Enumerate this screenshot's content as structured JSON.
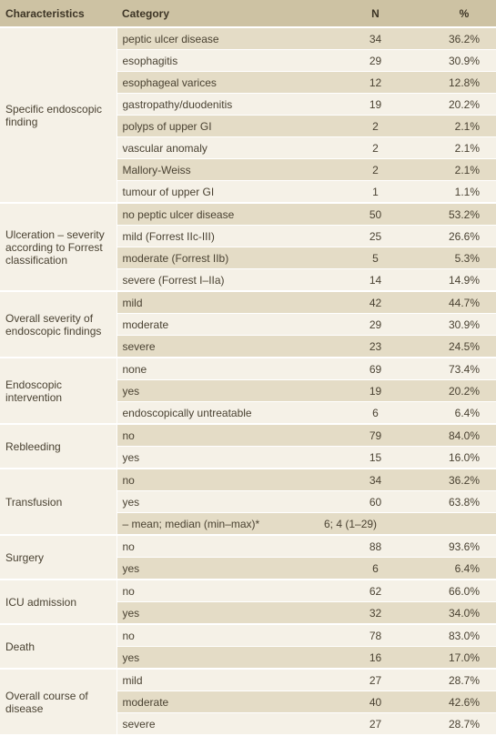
{
  "header": [
    "Characteristics",
    "Category",
    "N",
    "%"
  ],
  "groups": [
    {
      "label": "Specific endoscopic finding",
      "rows": [
        [
          "peptic ulcer disease",
          "34",
          "36.2%"
        ],
        [
          "esophagitis",
          "29",
          "30.9%"
        ],
        [
          "esophageal varices",
          "12",
          "12.8%"
        ],
        [
          "gastropathy/duodenitis",
          "19",
          "20.2%"
        ],
        [
          "polyps of upper GI",
          "2",
          "2.1%"
        ],
        [
          "vascular anomaly",
          "2",
          "2.1%"
        ],
        [
          "Mallory-Weiss",
          "2",
          "2.1%"
        ],
        [
          "tumour of upper GI",
          "1",
          "1.1%"
        ]
      ]
    },
    {
      "label": "Ulceration – severity according to Forrest classification",
      "rows": [
        [
          "no peptic ulcer disease",
          "50",
          "53.2%"
        ],
        [
          "mild (Forrest IIc-III)",
          "25",
          "26.6%"
        ],
        [
          "moderate (Forrest IIb)",
          "5",
          "5.3%"
        ],
        [
          "severe (Forrest I–IIa)",
          "14",
          "14.9%"
        ]
      ]
    },
    {
      "label": "Overall severity of endoscopic findings",
      "rows": [
        [
          "mild",
          "42",
          "44.7%"
        ],
        [
          "moderate",
          "29",
          "30.9%"
        ],
        [
          "severe",
          "23",
          "24.5%"
        ]
      ]
    },
    {
      "label": "Endoscopic intervention",
      "rows": [
        [
          "none",
          "69",
          "73.4%"
        ],
        [
          "yes",
          "19",
          "20.2%"
        ],
        [
          "endoscopically untreatable",
          "6",
          "6.4%"
        ]
      ]
    },
    {
      "label": "Rebleeding",
      "rows": [
        [
          "no",
          "79",
          "84.0%"
        ],
        [
          "yes",
          "15",
          "16.0%"
        ]
      ]
    },
    {
      "label": "Transfusion",
      "rows": [
        [
          "no",
          "34",
          "36.2%"
        ],
        [
          "yes",
          "60",
          "63.8%"
        ],
        [
          "– mean; median (min–max)*",
          "6; 4 (1–29)"
        ]
      ]
    },
    {
      "label": "Surgery",
      "rows": [
        [
          "no",
          "88",
          "93.6%"
        ],
        [
          "yes",
          "6",
          "6.4%"
        ]
      ]
    },
    {
      "label": "ICU admission",
      "rows": [
        [
          "no",
          "62",
          "66.0%"
        ],
        [
          "yes",
          "32",
          "34.0%"
        ]
      ]
    },
    {
      "label": "Death",
      "rows": [
        [
          "no",
          "78",
          "83.0%"
        ],
        [
          "yes",
          "16",
          "17.0%"
        ]
      ]
    },
    {
      "label": "Overall course of disease",
      "rows": [
        [
          "mild",
          "27",
          "28.7%"
        ],
        [
          "moderate",
          "40",
          "42.6%"
        ],
        [
          "severe",
          "27",
          "28.7%"
        ]
      ]
    }
  ]
}
